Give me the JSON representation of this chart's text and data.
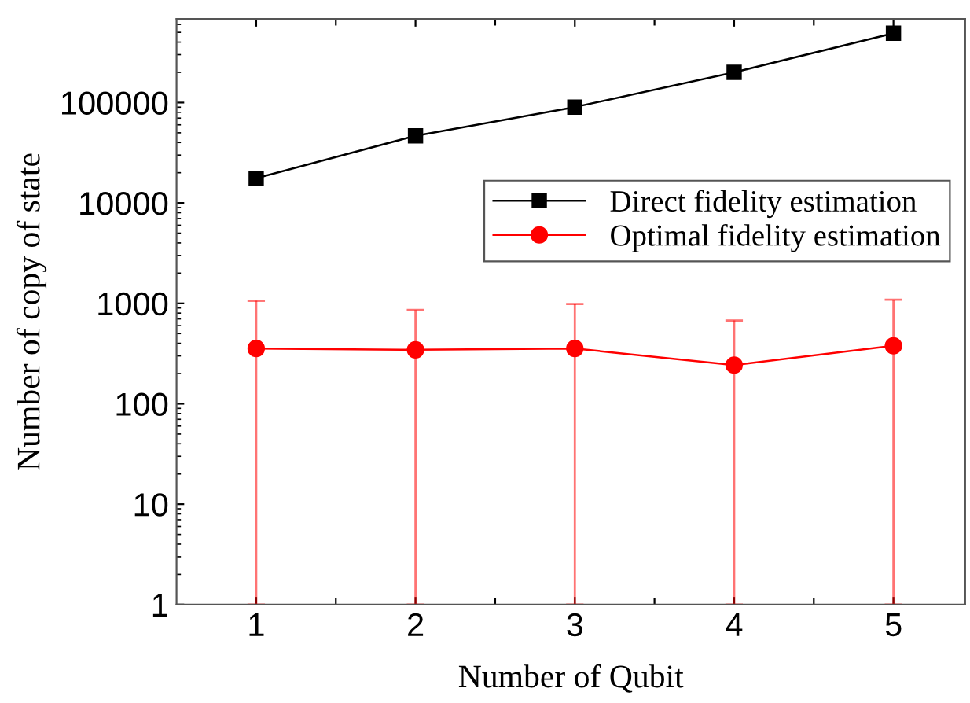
{
  "chart_data": {
    "type": "line",
    "xlabel": "Number of Qubit",
    "ylabel": "Number of copy of state",
    "x": [
      1,
      2,
      3,
      4,
      5
    ],
    "series": [
      {
        "name": "Direct fidelity estimation",
        "color": "#000000",
        "marker": "square",
        "values": [
          17600,
          46700,
          90200,
          200000,
          490000
        ]
      },
      {
        "name": "Optimal fidelity estimation",
        "color": "#ff0000",
        "marker": "circle",
        "values": [
          355,
          345,
          355,
          243,
          378
        ],
        "errors": [
          [
            1,
            1060
          ],
          [
            1,
            860
          ],
          [
            1,
            985
          ],
          [
            1,
            675
          ],
          [
            1,
            1090
          ]
        ]
      }
    ],
    "log": true,
    "xlim": [
      0.5,
      5.45
    ],
    "ylim": [
      1,
      680000
    ],
    "xticks": [
      1,
      {
        "value": 1.5,
        "label": null
      },
      2,
      {
        "value": 2.5,
        "label": null
      },
      3,
      {
        "value": 3.5,
        "label": null
      },
      4,
      {
        "value": 4.5,
        "label": null
      },
      5
    ],
    "yticks": [
      1,
      10,
      100,
      1000,
      10000,
      100000
    ],
    "grid": false,
    "legend": "right",
    "line_style": "solid"
  }
}
